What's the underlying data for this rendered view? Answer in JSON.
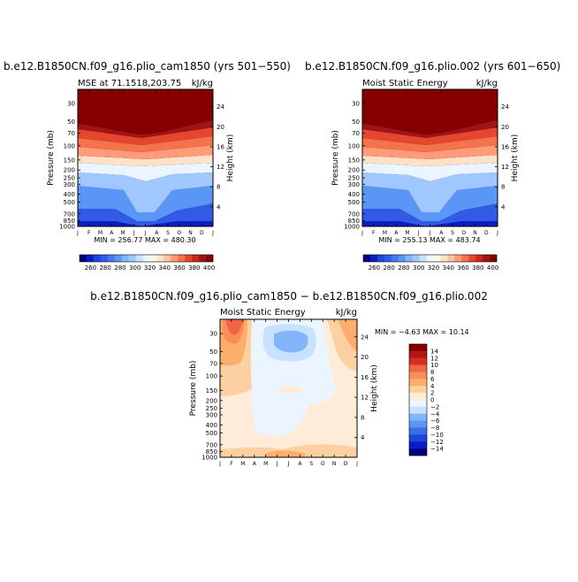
{
  "chart_data": [
    {
      "type": "heatmap",
      "title": "b.e12.B1850CN.f09_g16.plio_cam1850 (yrs 501−550)",
      "subtitle": "MSE at 71.1518,203.75",
      "units": "kJ/kg",
      "ylabel": "Pressure (mb)",
      "ylabel_right": "Height (km)",
      "x_ticks": [
        "J",
        "F",
        "M",
        "A",
        "M",
        "J",
        "J",
        "A",
        "S",
        "O",
        "N",
        "D",
        "J"
      ],
      "y_ticks": [
        30,
        50,
        70,
        100,
        150,
        200,
        250,
        300,
        400,
        500,
        700,
        850,
        1000
      ],
      "y_ticks_right": [
        4,
        8,
        12,
        16,
        20,
        24
      ],
      "min_max": "MIN = 256.77  MAX = 480.30",
      "colorbar": {
        "orientation": "horizontal",
        "labels": [
          "260",
          "280",
          "280",
          "300",
          "320",
          "340",
          "360",
          "380",
          "400"
        ],
        "levels": [
          260,
          270,
          280,
          290,
          300,
          310,
          320,
          330,
          340,
          350,
          360,
          370,
          380,
          390,
          400
        ],
        "colors": [
          "#00007d",
          "#0a1ec4",
          "#1e46dc",
          "#325ae6",
          "#4678f0",
          "#5a96f5",
          "#82b4fa",
          "#a0c8ff",
          "#c8e1ff",
          "#ebf5ff",
          "#fff5e6",
          "#ffe1c8",
          "#ffc3a0",
          "#ff9b78",
          "#f5734b",
          "#e6462d",
          "#c8281e",
          "#a01414",
          "#870000"
        ]
      }
    },
    {
      "type": "heatmap",
      "title": "b.e12.B1850CN.f09_g16.plio.002 (yrs 601−650)",
      "subtitle": "Moist Static Energy",
      "units": "kJ/kg",
      "ylabel": "Pressure (mb)",
      "ylabel_right": "Height (km)",
      "x_ticks": [
        "J",
        "F",
        "M",
        "A",
        "M",
        "J",
        "J",
        "A",
        "S",
        "O",
        "N",
        "D",
        "J"
      ],
      "y_ticks": [
        30,
        50,
        70,
        100,
        150,
        200,
        250,
        300,
        400,
        500,
        700,
        850,
        1000
      ],
      "y_ticks_right": [
        4,
        8,
        12,
        16,
        20,
        24
      ],
      "min_max": "MIN = 255.13  MAX = 483.74",
      "colorbar": {
        "orientation": "horizontal",
        "labels": [
          "260",
          "280",
          "280",
          "300",
          "320",
          "340",
          "360",
          "380",
          "400"
        ],
        "levels": [
          260,
          270,
          280,
          290,
          300,
          310,
          320,
          330,
          340,
          350,
          360,
          370,
          380,
          390,
          400
        ],
        "colors": [
          "#00007d",
          "#0a1ec4",
          "#1e46dc",
          "#325ae6",
          "#4678f0",
          "#5a96f5",
          "#82b4fa",
          "#a0c8ff",
          "#c8e1ff",
          "#ebf5ff",
          "#fff5e6",
          "#ffe1c8",
          "#ffc3a0",
          "#ff9b78",
          "#f5734b",
          "#e6462d",
          "#c8281e",
          "#a01414",
          "#870000"
        ]
      }
    },
    {
      "type": "heatmap",
      "title": "b.e12.B1850CN.f09_g16.plio_cam1850 − b.e12.B1850CN.f09_g16.plio.002",
      "subtitle": "Moist Static Energy",
      "units": "kJ/kg",
      "ylabel": "Pressure (mb)",
      "ylabel_right": "Height (km)",
      "x_ticks": [
        "J",
        "F",
        "M",
        "A",
        "M",
        "J",
        "J",
        "A",
        "S",
        "O",
        "N",
        "D",
        "J"
      ],
      "y_ticks": [
        30,
        50,
        70,
        100,
        150,
        200,
        250,
        300,
        400,
        500,
        700,
        850,
        1000
      ],
      "y_ticks_right": [
        4,
        8,
        12,
        16,
        20,
        24
      ],
      "min_max": "MIN =  −4.63 MAX =  10.14",
      "colorbar": {
        "orientation": "vertical",
        "labels": [
          "14",
          "12",
          "10",
          "8",
          "6",
          "4",
          "2",
          "0",
          "−2",
          "−4",
          "−6",
          "−8",
          "−10",
          "−12",
          "−14"
        ],
        "colors": [
          "#870000",
          "#b41414",
          "#d7301f",
          "#ef6548",
          "#fc8d59",
          "#fdae6b",
          "#fdd0a2",
          "#feebd8",
          "#ebf5ff",
          "#c8e1ff",
          "#82b4fa",
          "#5a96f5",
          "#3c6ee6",
          "#1e46dc",
          "#0a1ec4",
          "#00007d"
        ]
      }
    }
  ]
}
